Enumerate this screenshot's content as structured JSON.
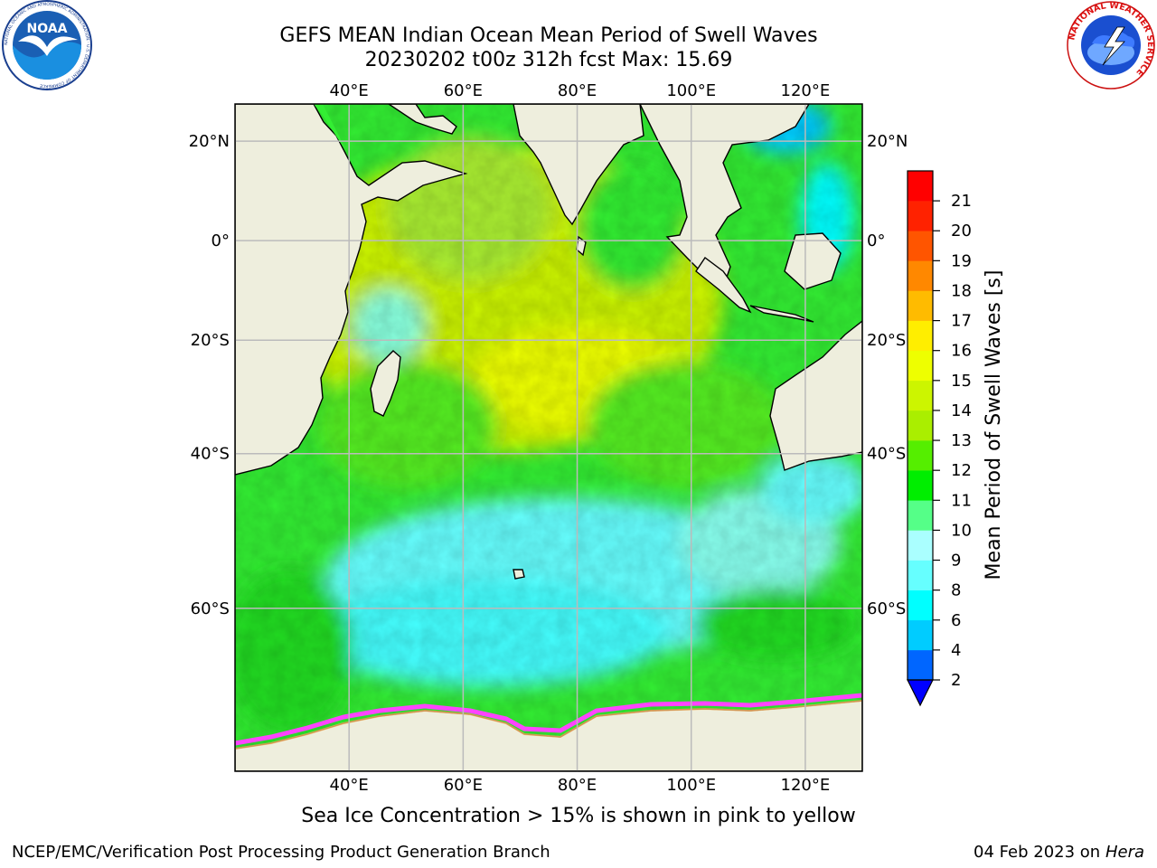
{
  "header": {
    "title": "GEFS MEAN Indian Ocean Mean Period of Swell Waves",
    "subtitle": "20230202 t00z 312h fcst   Max: 15.69"
  },
  "map": {
    "lon_range": [
      20,
      130
    ],
    "lat_range": [
      -73,
      27
    ],
    "lon_labels": [
      "40°E",
      "60°E",
      "80°E",
      "100°E",
      "120°E"
    ],
    "lat_labels": [
      "20°N",
      "0°",
      "20°S",
      "40°S",
      "60°S"
    ],
    "land_color": "#eeeedd",
    "grid_color": "#bbbbbb"
  },
  "colorbar": {
    "label": "Mean Period of Swell Waves [s]",
    "ticks": [
      "2",
      "4",
      "6",
      "8",
      "9",
      "10",
      "11",
      "12",
      "13",
      "14",
      "15",
      "16",
      "17",
      "18",
      "19",
      "20",
      "21"
    ],
    "colors": [
      "#0066ff",
      "#00ccff",
      "#00ffff",
      "#66ffff",
      "#aaffff",
      "#55ff88",
      "#00ee00",
      "#55ee00",
      "#aaee00",
      "#ccf500",
      "#eeff00",
      "#ffee00",
      "#ffbb00",
      "#ff8800",
      "#ff5500",
      "#ff2200",
      "#ff0000"
    ],
    "under_color": "#0000ff"
  },
  "caption": "Sea Ice Concentration > 15% is shown in pink to yellow",
  "footer": {
    "left": "NCEP/EMC/Verification Post Processing Product Generation Branch",
    "date": "04 Feb 2023 on",
    "machine": "Hera"
  },
  "logos": {
    "noaa": "NOAA",
    "noaa_ring": "NATIONAL OCEANIC AND ATMOSPHERIC ADMINISTRATION · U.S. DEPARTMENT OF COMMERCE",
    "nws": "NATIONAL WEATHER SERVICE"
  }
}
